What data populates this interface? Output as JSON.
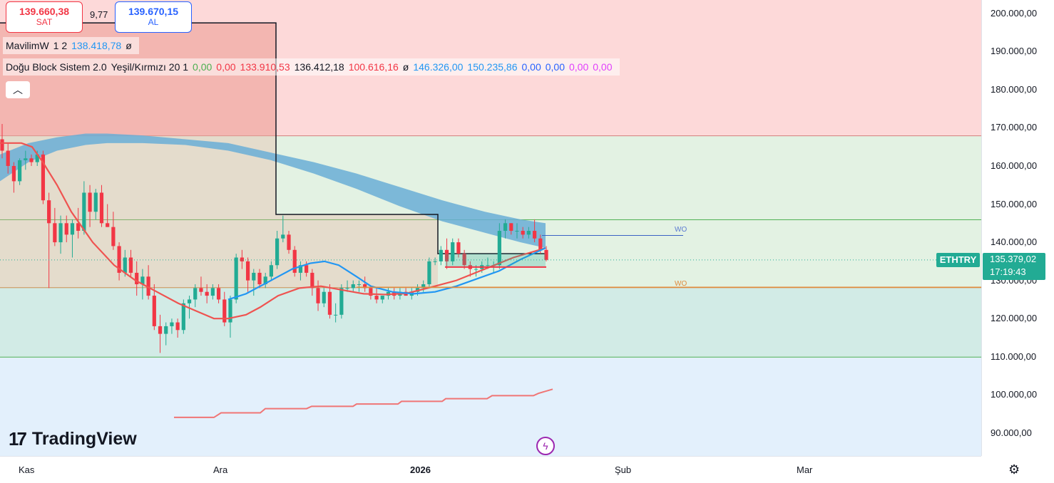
{
  "trade": {
    "sell_price": "139.660,38",
    "sell_label": "SAT",
    "spread": "9,77",
    "buy_price": "139.670,15",
    "buy_label": "AL"
  },
  "legend": {
    "line1": [
      "MavilimW",
      "1 2",
      "138.418,78",
      "ø"
    ],
    "line1_colors": [
      "#131722",
      "#131722",
      "#2196f3",
      "#131722"
    ],
    "line2": [
      "Doğu Block Sistem 2.0",
      "Yeşil/Kırmızı 20 1",
      "0,00",
      "0,00",
      "133.910,53",
      "136.412,18",
      "100.616,16",
      "ø",
      "146.326,00",
      "150.235,86",
      "0,00",
      "0,00",
      "0,00",
      "0,00"
    ],
    "line2_colors": [
      "#131722",
      "#131722",
      "#4caf50",
      "#f23645",
      "#f23645",
      "#131722",
      "#f23645",
      "#131722",
      "#2196f3",
      "#2196f3",
      "#2962ff",
      "#2962ff",
      "#e040fb",
      "#e040fb"
    ],
    "collapse_icon": "chevron-up-icon",
    "collapse_glyph": "︿"
  },
  "price_axis": {
    "labels": [
      "200.000,00",
      "190.000,00",
      "180.000,00",
      "170.000,00",
      "160.000,00",
      "150.000,00",
      "140.000,00",
      "130.000,00",
      "120.000,00",
      "110.000,00",
      "100.000,00",
      "90.000,00"
    ],
    "values": [
      200000,
      190000,
      180000,
      170000,
      160000,
      150000,
      140000,
      130000,
      120000,
      110000,
      100000,
      90000
    ],
    "symbol": "ETHTRY",
    "last_price": "135.379,02",
    "countdown": "17:19:43"
  },
  "time_axis": {
    "labels": [
      {
        "text": "Kas",
        "bold": false
      },
      {
        "text": "Ara",
        "bold": false
      },
      {
        "text": "2026",
        "bold": true
      },
      {
        "text": "Şub",
        "bold": false
      },
      {
        "text": "Mar",
        "bold": false
      }
    ],
    "settings_icon": "settings-gear-icon",
    "settings_glyph": "⚙"
  },
  "annotations": {
    "wo1": "WO",
    "wo2": "WO"
  },
  "logo": {
    "mark": "17",
    "text": "TradingView"
  },
  "bolt": {
    "icon": "lightning-bolt-icon",
    "glyph": "ϟ"
  },
  "colors": {
    "up": "#22ab94",
    "down": "#f23645",
    "ema_red": "#ef5350",
    "mavilim": "#2196f3",
    "cloud": "#6aaed6"
  },
  "chart_data": {
    "type": "candlestick",
    "symbol": "ETHTRY",
    "y_range": [
      84000,
      203500
    ],
    "candles": [
      [
        167000,
        171000,
        162000,
        164000
      ],
      [
        164000,
        166000,
        158000,
        160000
      ],
      [
        160000,
        161000,
        153000,
        156000
      ],
      [
        156000,
        162000,
        155000,
        161500
      ],
      [
        161500,
        164000,
        159000,
        162000
      ],
      [
        162000,
        163000,
        160000,
        161000
      ],
      [
        161000,
        164000,
        160000,
        163000
      ],
      [
        163000,
        164000,
        150000,
        151000
      ],
      [
        151000,
        153000,
        128000,
        145000
      ],
      [
        145000,
        149000,
        139000,
        140000
      ],
      [
        140000,
        147000,
        137000,
        145000
      ],
      [
        145000,
        147000,
        140000,
        142000
      ],
      [
        142000,
        146000,
        136000,
        145000
      ],
      [
        145000,
        149000,
        141000,
        143000
      ],
      [
        143000,
        156000,
        142000,
        153000
      ],
      [
        153000,
        155000,
        144000,
        148000
      ],
      [
        148000,
        154000,
        146000,
        153000
      ],
      [
        153000,
        155000,
        144000,
        145000
      ],
      [
        145000,
        150000,
        144000,
        144000
      ],
      [
        144000,
        148000,
        138000,
        139000
      ],
      [
        139000,
        140000,
        130000,
        132000
      ],
      [
        132000,
        138000,
        131000,
        136000
      ],
      [
        136000,
        138000,
        131000,
        132000
      ],
      [
        132000,
        135000,
        126000,
        129000
      ],
      [
        129000,
        133000,
        125000,
        131000
      ],
      [
        131000,
        134000,
        125000,
        126000
      ],
      [
        126000,
        129000,
        117000,
        118000
      ],
      [
        118000,
        121000,
        111000,
        116000
      ],
      [
        116000,
        119000,
        113000,
        118000
      ],
      [
        118000,
        120000,
        116000,
        119000
      ],
      [
        119000,
        120000,
        115000,
        117000
      ],
      [
        117000,
        125000,
        116000,
        124000
      ],
      [
        124000,
        126000,
        120000,
        125000
      ],
      [
        125000,
        129000,
        123000,
        128000
      ],
      [
        128000,
        131000,
        126000,
        127000
      ],
      [
        127000,
        129000,
        124000,
        126000
      ],
      [
        126000,
        129000,
        125000,
        128000
      ],
      [
        128000,
        129000,
        124000,
        125000
      ],
      [
        125000,
        127000,
        118000,
        119000
      ],
      [
        119000,
        126000,
        115000,
        125000
      ],
      [
        125000,
        137000,
        124000,
        136000
      ],
      [
        136000,
        138000,
        133000,
        135000
      ],
      [
        135000,
        136000,
        127000,
        130000
      ],
      [
        130000,
        133000,
        126000,
        132000
      ],
      [
        132000,
        133000,
        128000,
        129000
      ],
      [
        129000,
        132000,
        128000,
        131000
      ],
      [
        131000,
        135000,
        130000,
        134000
      ],
      [
        134000,
        143000,
        133000,
        141000
      ],
      [
        141000,
        147000,
        140000,
        142000
      ],
      [
        142000,
        143000,
        137000,
        138000
      ],
      [
        138000,
        139000,
        131000,
        132000
      ],
      [
        132000,
        135000,
        130000,
        134000
      ],
      [
        134000,
        135000,
        131000,
        132000
      ],
      [
        132000,
        133000,
        126000,
        128000
      ],
      [
        128000,
        130000,
        122000,
        124000
      ],
      [
        124000,
        128000,
        123000,
        127000
      ],
      [
        127000,
        129000,
        120000,
        121000
      ],
      [
        121000,
        124000,
        119000,
        121000
      ],
      [
        121000,
        129000,
        120000,
        128000
      ],
      [
        128000,
        130000,
        127000,
        128000
      ],
      [
        128000,
        130000,
        127000,
        129000
      ],
      [
        129000,
        130000,
        127000,
        129000
      ],
      [
        129000,
        131000,
        127000,
        128000
      ],
      [
        128000,
        128000,
        125000,
        126000
      ],
      [
        126000,
        128000,
        124000,
        125000
      ],
      [
        125000,
        126000,
        124000,
        126000
      ],
      [
        126000,
        128000,
        125000,
        127000
      ],
      [
        127000,
        128000,
        125000,
        126000
      ],
      [
        126000,
        128000,
        125000,
        127000
      ],
      [
        127000,
        128000,
        126000,
        126000
      ],
      [
        126000,
        128000,
        125000,
        127000
      ],
      [
        127000,
        129000,
        126000,
        128000
      ],
      [
        128000,
        130000,
        127000,
        129000
      ],
      [
        129000,
        136000,
        128000,
        135000
      ],
      [
        135000,
        136000,
        134000,
        135000
      ],
      [
        135000,
        139000,
        134000,
        138000
      ],
      [
        138000,
        141000,
        133000,
        135000
      ],
      [
        135000,
        141000,
        134000,
        140000
      ],
      [
        140000,
        141000,
        136000,
        137000
      ],
      [
        137000,
        138000,
        133000,
        134000
      ],
      [
        134000,
        135000,
        131000,
        133000
      ],
      [
        133000,
        134000,
        131000,
        133000
      ],
      [
        133000,
        135000,
        132000,
        134000
      ],
      [
        134000,
        136000,
        133000,
        134000
      ],
      [
        134000,
        135000,
        132000,
        134000
      ],
      [
        134000,
        145000,
        133000,
        143000
      ],
      [
        143000,
        146000,
        141000,
        145000
      ],
      [
        145000,
        145000,
        142000,
        143000
      ],
      [
        143000,
        145000,
        141000,
        143000
      ],
      [
        143000,
        144000,
        141000,
        142000
      ],
      [
        142000,
        144000,
        141000,
        143000
      ],
      [
        143000,
        146000,
        140000,
        141000
      ],
      [
        141000,
        142000,
        137000,
        138000
      ],
      [
        138000,
        139000,
        135000,
        135379
      ]
    ],
    "red_ema": [
      [
        0,
        166000
      ],
      [
        30,
        166000
      ],
      [
        45,
        165000
      ],
      [
        60,
        161000
      ],
      [
        80,
        155000
      ],
      [
        100,
        148000
      ],
      [
        130,
        140000
      ],
      [
        160,
        134000
      ],
      [
        190,
        130000
      ],
      [
        220,
        127000
      ],
      [
        250,
        124000
      ],
      [
        275,
        122000
      ],
      [
        300,
        120000
      ],
      [
        320,
        120000
      ],
      [
        345,
        121000
      ],
      [
        365,
        123000
      ],
      [
        390,
        126000
      ],
      [
        420,
        128000
      ],
      [
        450,
        128500
      ],
      [
        480,
        127500
      ],
      [
        510,
        126500
      ],
      [
        540,
        126300
      ],
      [
        570,
        126600
      ],
      [
        600,
        128000
      ],
      [
        640,
        130000
      ],
      [
        680,
        133000
      ],
      [
        720,
        136000
      ],
      [
        765,
        138500
      ]
    ],
    "mavilim": [
      [
        320,
        125000
      ],
      [
        345,
        126500
      ],
      [
        365,
        128500
      ],
      [
        385,
        130500
      ],
      [
        410,
        133000
      ],
      [
        435,
        134500
      ],
      [
        455,
        135000
      ],
      [
        475,
        134000
      ],
      [
        500,
        131000
      ],
      [
        520,
        128500
      ],
      [
        550,
        127000
      ],
      [
        580,
        126500
      ],
      [
        610,
        127000
      ],
      [
        640,
        128500
      ],
      [
        670,
        130500
      ],
      [
        700,
        132500
      ],
      [
        730,
        135500
      ],
      [
        765,
        138500
      ]
    ],
    "cloud_upper": [
      [
        0,
        163000
      ],
      [
        40,
        166000
      ],
      [
        80,
        167500
      ],
      [
        120,
        168500
      ],
      [
        150,
        168500
      ],
      [
        200,
        168000
      ],
      [
        260,
        167000
      ],
      [
        320,
        166000
      ],
      [
        380,
        163500
      ],
      [
        440,
        161000
      ],
      [
        500,
        158000
      ],
      [
        560,
        154500
      ],
      [
        620,
        151000
      ],
      [
        680,
        148000
      ],
      [
        730,
        146000
      ],
      [
        765,
        145000
      ]
    ],
    "cloud_lower": [
      [
        0,
        156000
      ],
      [
        40,
        161000
      ],
      [
        80,
        164000
      ],
      [
        120,
        165500
      ],
      [
        150,
        166000
      ],
      [
        200,
        166000
      ],
      [
        260,
        165500
      ],
      [
        320,
        164000
      ],
      [
        380,
        161500
      ],
      [
        440,
        158000
      ],
      [
        500,
        154000
      ],
      [
        560,
        149500
      ],
      [
        620,
        145500
      ],
      [
        680,
        142500
      ],
      [
        730,
        140000
      ],
      [
        765,
        138500
      ]
    ],
    "step_line": [
      [
        0,
        197500
      ],
      [
        387,
        197500
      ],
      [
        387,
        147300
      ],
      [
        614,
        147300
      ],
      [
        614,
        137000
      ],
      [
        765,
        137000
      ]
    ],
    "stair_line": [
      [
        244,
        94100
      ],
      [
        300,
        94100
      ],
      [
        310,
        95300
      ],
      [
        365,
        95300
      ],
      [
        372,
        96400
      ],
      [
        430,
        96400
      ],
      [
        437,
        97000
      ],
      [
        495,
        97000
      ],
      [
        500,
        97600
      ],
      [
        558,
        97600
      ],
      [
        563,
        98300
      ],
      [
        620,
        98300
      ],
      [
        625,
        99000
      ],
      [
        683,
        99000
      ],
      [
        690,
        99800
      ],
      [
        748,
        99800
      ],
      [
        755,
        100400
      ],
      [
        775,
        101500
      ]
    ],
    "zones": {
      "red_top": [
        168000,
        203500
      ],
      "green_mid": [
        128200,
        168000
      ],
      "teal_low": [
        110000,
        128200
      ],
      "blue_bottom": [
        84000,
        110000
      ]
    },
    "h_lines": [
      146000,
      110000,
      128200
    ],
    "wo_level_1": 141800,
    "wo_level_2": 128200,
    "last_price": 135379.02
  }
}
